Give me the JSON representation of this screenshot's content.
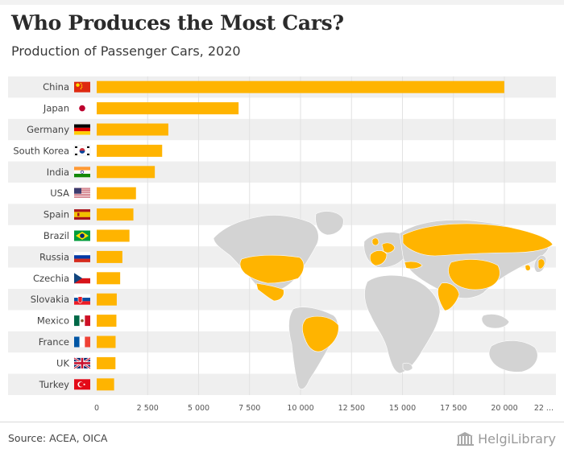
{
  "header": {
    "title": "Who Produces the Most Cars?",
    "subtitle": "Production of Passenger Cars, 2020"
  },
  "footer": {
    "source": "Source: ACEA, OICA",
    "brand": "HelgiLibrary"
  },
  "colors": {
    "bar": "#ffb400",
    "highlight_country": "#ffb400",
    "land": "#d3d3d3",
    "row_band": "#efefef",
    "grid": "#e2e2e2"
  },
  "chart_data": {
    "type": "bar",
    "orientation": "horizontal",
    "title": "Who Produces the Most Cars?",
    "subtitle": "Production of Passenger Cars, 2020",
    "categories": [
      "China",
      "Japan",
      "Germany",
      "South Korea",
      "India",
      "USA",
      "Spain",
      "Brazil",
      "Russia",
      "Czechia",
      "Slovakia",
      "Mexico",
      "France",
      "UK",
      "Turkey"
    ],
    "flags": [
      "china",
      "japan",
      "germany",
      "south-korea",
      "india",
      "usa",
      "spain",
      "brazil",
      "russia",
      "czechia",
      "slovakia",
      "mexico",
      "france",
      "uk",
      "turkey"
    ],
    "values": [
      19994,
      6960,
      3515,
      3212,
      2852,
      1927,
      1801,
      1608,
      1260,
      1152,
      985,
      967,
      927,
      921,
      855
    ],
    "xlim": [
      0,
      22500
    ],
    "xticks": [
      0,
      2500,
      5000,
      7500,
      10000,
      12500,
      15000,
      17500,
      20000
    ],
    "xtick_labels": [
      "0",
      "2 500",
      "5 000",
      "7 500",
      "10 000",
      "12 500",
      "15 000",
      "17 500",
      "20 000"
    ],
    "xtick_overflow_label": "22 ...",
    "xlabel": "",
    "ylabel": "",
    "grid": true,
    "legend": "none"
  }
}
